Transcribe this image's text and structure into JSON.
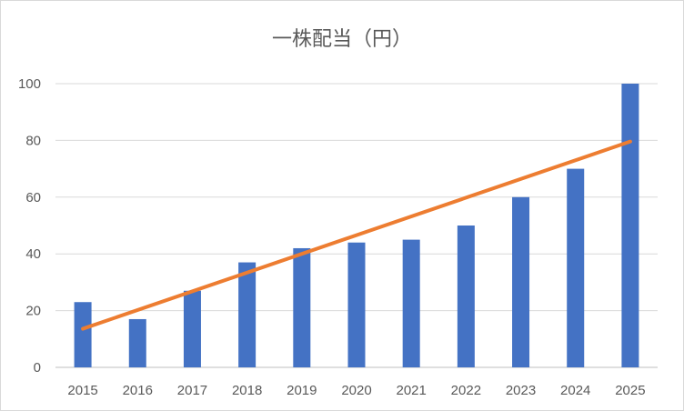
{
  "chart_data": {
    "type": "bar",
    "title": "一株配当（円）",
    "categories": [
      "2015",
      "2016",
      "2017",
      "2018",
      "2019",
      "2020",
      "2021",
      "2022",
      "2023",
      "2024",
      "2025"
    ],
    "series": [
      {
        "values": [
          23,
          17,
          27,
          37,
          42,
          44,
          45,
          50,
          60,
          70,
          100
        ],
        "color": "#4472C4"
      }
    ],
    "trendline": {
      "type": "linear",
      "start": 13.6,
      "end": 79.6,
      "color": "#ED7D31"
    },
    "yticks": [
      0,
      20,
      40,
      60,
      80,
      100
    ],
    "ylim": [
      0,
      100
    ],
    "grid": true,
    "xlabel": "",
    "ylabel": ""
  }
}
